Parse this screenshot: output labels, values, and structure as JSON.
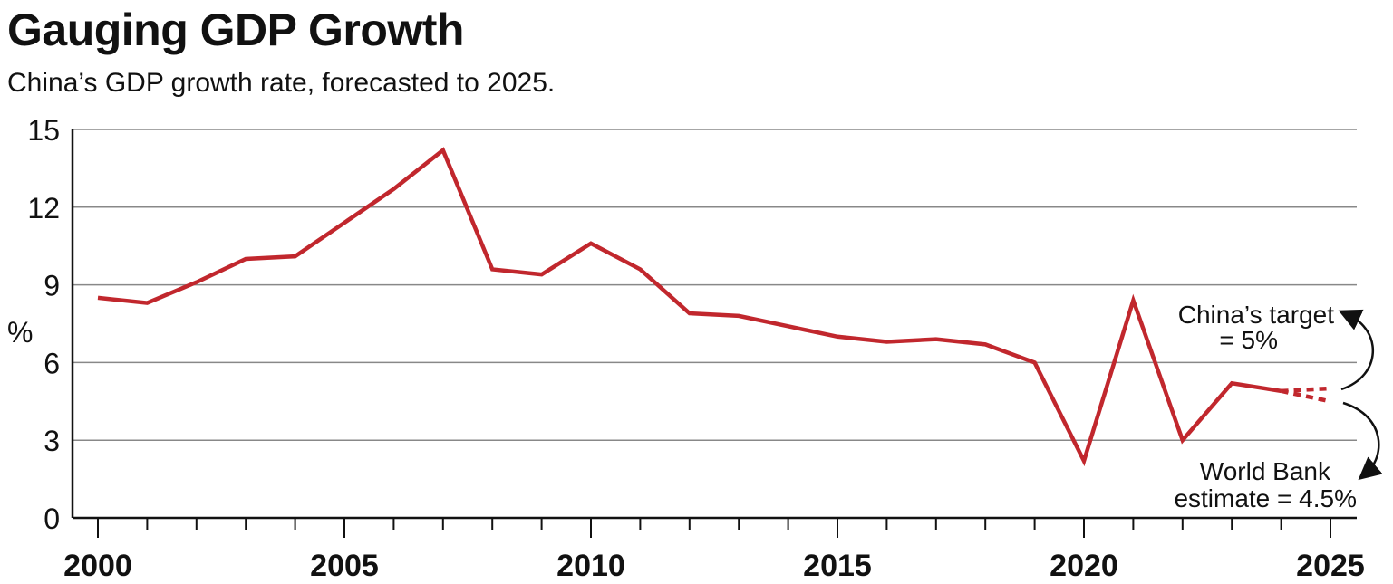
{
  "chart_data": {
    "type": "line",
    "title": "Gauging GDP Growth",
    "subtitle": "China’s GDP growth rate, forecasted to 2025.",
    "ylabel": "%",
    "xlabel": "",
    "xlim": [
      2000,
      2025
    ],
    "ylim": [
      0,
      15
    ],
    "yticks": [
      0,
      3,
      6,
      9,
      12,
      15
    ],
    "xticks": [
      2000,
      2005,
      2010,
      2015,
      2020,
      2025
    ],
    "grid": true,
    "colors": {
      "line": "#c1272d",
      "grid": "#888888",
      "axis": "#111111"
    },
    "series": [
      {
        "x": [
          2000,
          2001,
          2002,
          2003,
          2004,
          2005,
          2006,
          2007,
          2008,
          2009,
          2010,
          2011,
          2012,
          2013,
          2014,
          2015,
          2016,
          2017,
          2018,
          2019,
          2020,
          2021,
          2022,
          2023,
          2024
        ],
        "values": [
          8.5,
          8.3,
          9.1,
          10.0,
          10.1,
          11.4,
          12.7,
          14.2,
          9.6,
          9.4,
          10.6,
          9.6,
          7.9,
          7.8,
          7.4,
          7.0,
          6.8,
          6.9,
          6.7,
          6.0,
          2.2,
          8.4,
          3.0,
          5.2,
          4.9
        ]
      }
    ],
    "forecasts": [
      {
        "x": [
          2024,
          2025
        ],
        "values": [
          4.9,
          5.0
        ]
      },
      {
        "x": [
          2024,
          2025
        ],
        "values": [
          4.9,
          4.5
        ]
      }
    ],
    "annotations": [
      {
        "lines": [
          "China’s target",
          "= 5%"
        ]
      },
      {
        "lines": [
          "World Bank",
          "estimate = 4.5%"
        ]
      }
    ]
  }
}
